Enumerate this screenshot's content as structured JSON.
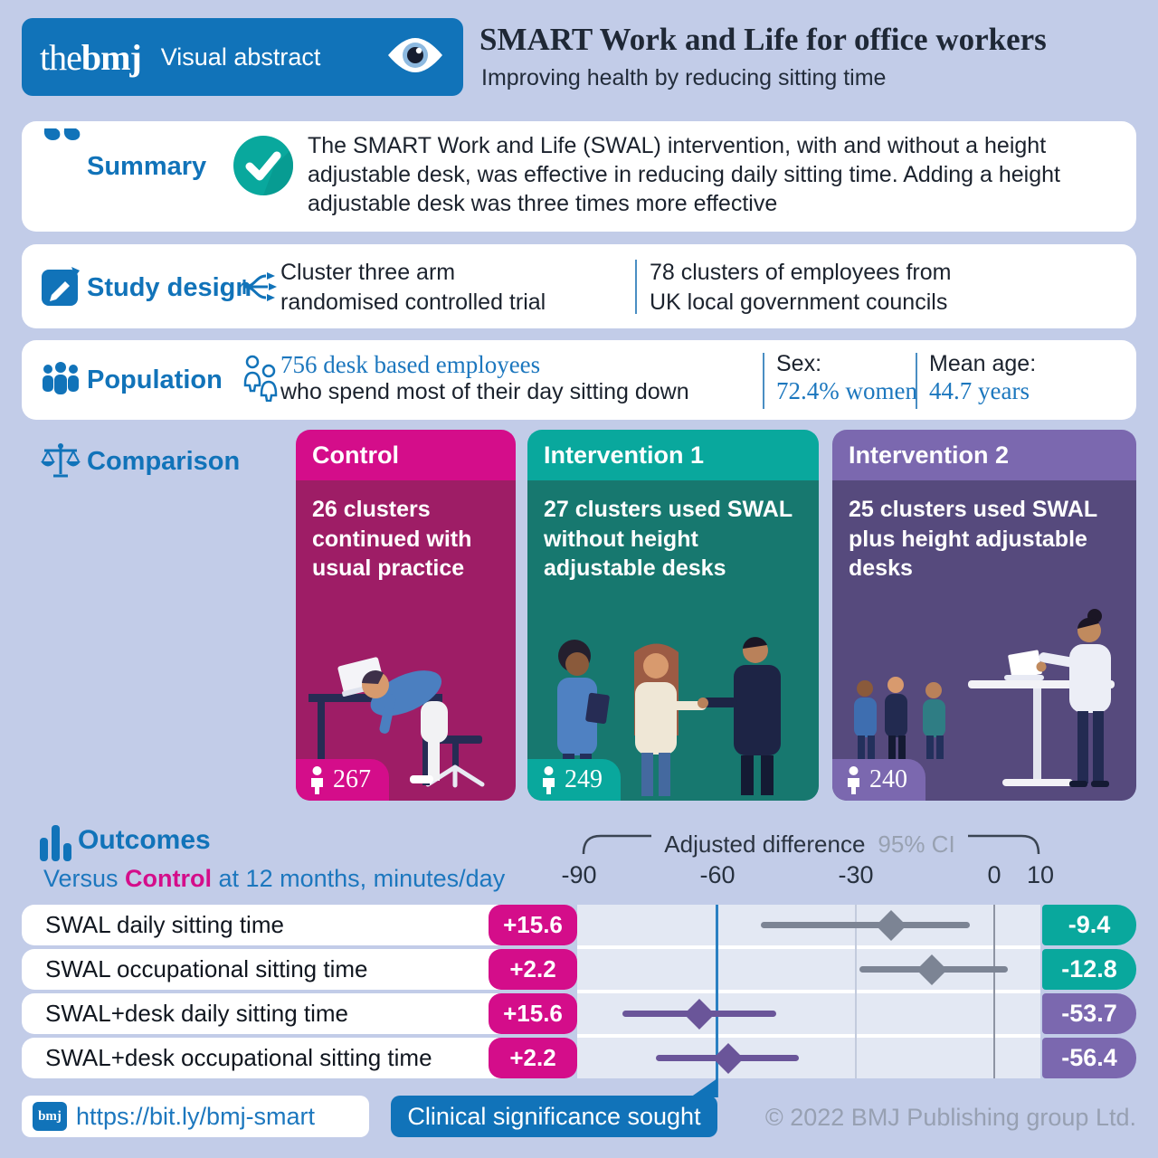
{
  "header": {
    "brand_the": "the",
    "brand_bmj": "bmj",
    "brand_label": "Visual abstract",
    "title": "SMART Work and Life for office workers",
    "subtitle": "Improving health by reducing sitting time"
  },
  "summary": {
    "label": "Summary",
    "text": "The SMART Work and Life (SWAL) intervention, with and without a height adjustable desk, was effective in reducing daily sitting time. Adding a height adjustable desk was three times more effective"
  },
  "study_design": {
    "label": "Study design",
    "method_line1": "Cluster three arm",
    "method_line2": "randomised controlled trial",
    "clusters_line1": "78 clusters of employees from",
    "clusters_line2": "UK local government councils"
  },
  "population": {
    "label": "Population",
    "count_highlight": "756 desk based employees",
    "count_rest": "who spend most of their day sitting down",
    "sex_label": "Sex:",
    "sex_value": "72.4% women",
    "age_label": "Mean age:",
    "age_value": "44.7 years"
  },
  "comparison": {
    "label": "Comparison",
    "cards": [
      {
        "title": "Control",
        "description": "26 clusters continued with usual practice",
        "count": "267"
      },
      {
        "title": "Intervention 1",
        "description": "27 clusters used SWAL without height adjustable desks",
        "count": "249"
      },
      {
        "title": "Intervention 2",
        "description": "25 clusters used SWAL plus height adjustable desks",
        "count": "240"
      }
    ]
  },
  "outcomes": {
    "label": "Outcomes",
    "versus_prefix": "Versus ",
    "versus_control": "Control",
    "versus_suffix": " at 12 months, minutes/day"
  },
  "chart_data": {
    "type": "forest",
    "title": "Adjusted difference",
    "ci_label": "95% CI",
    "xlabel": "minutes/day versus control at 12 months",
    "axis": {
      "ticks": [
        -90,
        -60,
        -30,
        0,
        10
      ],
      "xmin": -90.4,
      "xmax": 10,
      "clinical_significance_line": -60,
      "gridlines": [
        {
          "v": -30,
          "style": "gl-minor"
        },
        {
          "v": 0,
          "style": "gl-zero"
        }
      ]
    },
    "rows": [
      {
        "label": "SWAL daily sitting time",
        "control_change": "+15.6",
        "estimate": -22.4,
        "ci": [
          -50.5,
          -5.3
        ],
        "difference": "-9.4",
        "group": "swal"
      },
      {
        "label": "SWAL occupational sitting time",
        "control_change": "+2.2",
        "estimate": -13.5,
        "ci": [
          -29.2,
          2.9
        ],
        "difference": "-12.8",
        "group": "swal"
      },
      {
        "label": "SWAL+desk daily sitting time",
        "control_change": "+15.6",
        "estimate": -63.9,
        "ci": [
          -80.6,
          -47.3
        ],
        "difference": "-53.7",
        "group": "swal_desk"
      },
      {
        "label": "SWAL+desk occupational sitting time",
        "control_change": "+2.2",
        "estimate": -57.6,
        "ci": [
          -73.3,
          -42.4
        ],
        "difference": "-56.4",
        "group": "swal_desk"
      }
    ]
  },
  "footer": {
    "bmj_badge": "bmj",
    "link": "https://bit.ly/bmj-smart",
    "clinical_label": "Clinical significance sought",
    "copyright": "© 2022 BMJ Publishing group Ltd."
  },
  "colors": {
    "brand_blue": "#1173b9",
    "background": "#c2cce8",
    "magenta_bright": "#d40d8a",
    "magenta_dark": "#9e1d66",
    "teal_bright": "#09a89d",
    "teal_dark": "#17786f",
    "purple_bright": "#7b68af",
    "purple_dark": "#564a7d",
    "gray_marker": "#7c8494",
    "purple_marker": "#6a5599",
    "clinical_line_blue": "#2a80c2"
  }
}
